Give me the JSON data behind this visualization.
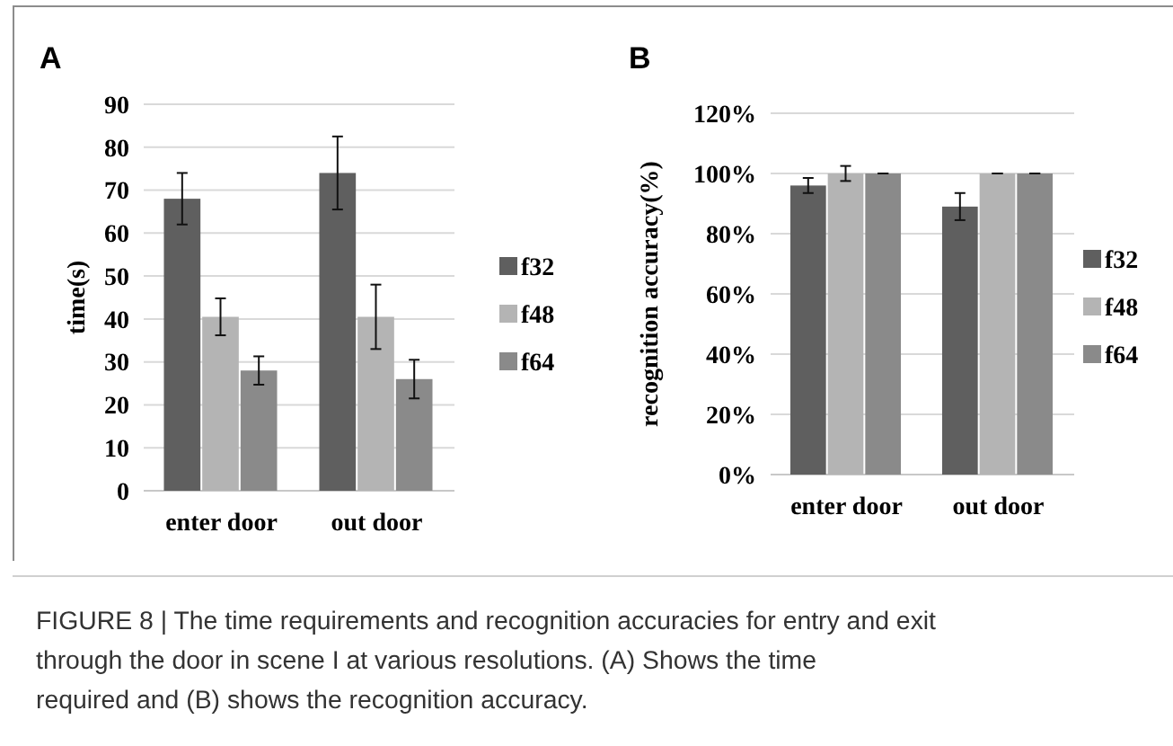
{
  "chart_data": [
    {
      "type": "bar",
      "title": "A",
      "ylabel": "time(s)",
      "categories": [
        "enter door",
        "out door"
      ],
      "series": [
        {
          "name": "f32",
          "color": "#5f5f5f",
          "values": [
            68,
            74
          ],
          "errors": [
            6,
            8.5
          ]
        },
        {
          "name": "f48",
          "color": "#b4b4b4",
          "values": [
            40.5,
            40.5
          ],
          "errors": [
            4.3,
            7.5
          ]
        },
        {
          "name": "f64",
          "color": "#8a8a8a",
          "values": [
            28,
            26
          ],
          "errors": [
            3.3,
            4.5
          ]
        }
      ],
      "ylim": [
        0,
        90
      ],
      "yticks": [
        0,
        10,
        20,
        30,
        40,
        50,
        60,
        70,
        80,
        90
      ],
      "grid": "y",
      "legend": "right",
      "annotations": [
        "FIGURE 8 | The time requirements and recognition accuracies for entry and exit through the door in scene I at various resolutions. (A) Shows the time required and (B) shows the recognition accuracy."
      ]
    },
    {
      "type": "bar",
      "title": "B",
      "ylabel": "recognition accuracy(%)",
      "categories": [
        "enter door",
        "out door"
      ],
      "series": [
        {
          "name": "f32",
          "color": "#5f5f5f",
          "values": [
            96,
            89
          ],
          "errors": [
            2.5,
            4.5
          ]
        },
        {
          "name": "f48",
          "color": "#b4b4b4",
          "values": [
            100,
            100
          ],
          "errors": [
            2.5,
            0
          ]
        },
        {
          "name": "f64",
          "color": "#8a8a8a",
          "values": [
            100,
            100
          ],
          "errors": [
            0,
            0
          ]
        }
      ],
      "ylim": [
        0,
        120
      ],
      "yticks": [
        {
          "value": 0,
          "label": "0%"
        },
        {
          "value": 20,
          "label": "20%"
        },
        {
          "value": 40,
          "label": "40%"
        },
        {
          "value": 60,
          "label": "60%"
        },
        {
          "value": 80,
          "label": "80%"
        },
        {
          "value": 100,
          "label": "100%"
        },
        {
          "value": 120,
          "label": "120%"
        }
      ],
      "grid": "y",
      "legend": "right"
    }
  ]
}
